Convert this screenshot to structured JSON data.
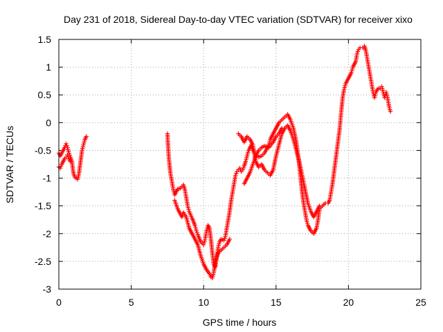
{
  "chart_data": {
    "type": "scatter",
    "title": "Day 231 of 2018, Sidereal Day-to-day VTEC variation (SDTVAR) for receiver xixo",
    "xlabel": "GPS time / hours",
    "ylabel": "SDTVAR / TECUs",
    "xlim": [
      0,
      25
    ],
    "ylim": [
      -3,
      1.5
    ],
    "xticks": [
      0,
      5,
      10,
      15,
      20,
      25
    ],
    "xtick_labels": [
      "0",
      "5",
      "10",
      "15",
      "20",
      "25"
    ],
    "yticks": [
      -3,
      -2.5,
      -2,
      -1.5,
      -1,
      -0.5,
      0,
      0.5,
      1,
      1.5
    ],
    "ytick_labels": [
      "-3",
      "-2.5",
      "-2",
      "-1.5",
      "-1",
      "-0.5",
      "0",
      "0.5",
      "1",
      "1.5"
    ],
    "grid": true,
    "marker": "plus",
    "color": "#ff0000",
    "series": [
      {
        "points": [
          [
            0.0,
            -0.55
          ],
          [
            0.1,
            -0.6
          ],
          [
            0.2,
            -0.55
          ],
          [
            0.3,
            -0.5
          ],
          [
            0.4,
            -0.45
          ],
          [
            0.5,
            -0.38
          ],
          [
            0.6,
            -0.45
          ],
          [
            0.7,
            -0.55
          ],
          [
            0.8,
            -0.62
          ],
          [
            0.9,
            -0.7
          ],
          [
            1.0,
            -0.9
          ],
          [
            1.1,
            -0.98
          ],
          [
            1.2,
            -1.0
          ],
          [
            1.3,
            -1.02
          ],
          [
            1.4,
            -0.9
          ],
          [
            1.5,
            -0.7
          ],
          [
            1.6,
            -0.5
          ],
          [
            1.7,
            -0.4
          ],
          [
            1.8,
            -0.3
          ],
          [
            1.9,
            -0.25
          ]
        ]
      },
      {
        "points": [
          [
            0.0,
            -0.8
          ],
          [
            0.1,
            -0.82
          ],
          [
            0.2,
            -0.75
          ],
          [
            0.3,
            -0.7
          ],
          [
            0.4,
            -0.65
          ],
          [
            0.5,
            -0.62
          ],
          [
            0.6,
            -0.58
          ],
          [
            0.7,
            -0.65
          ],
          [
            0.8,
            -0.7
          ]
        ]
      },
      {
        "points": [
          [
            7.5,
            -0.2
          ],
          [
            7.55,
            -0.45
          ],
          [
            7.6,
            -0.65
          ],
          [
            7.7,
            -0.9
          ],
          [
            7.8,
            -1.05
          ],
          [
            7.9,
            -1.2
          ],
          [
            8.0,
            -1.3
          ],
          [
            8.1,
            -1.25
          ],
          [
            8.2,
            -1.2
          ],
          [
            8.4,
            -1.18
          ],
          [
            8.5,
            -1.15
          ],
          [
            8.6,
            -1.12
          ],
          [
            8.7,
            -1.2
          ],
          [
            8.8,
            -1.35
          ],
          [
            8.9,
            -1.5
          ],
          [
            9.0,
            -1.6
          ],
          [
            9.2,
            -1.72
          ],
          [
            9.4,
            -1.85
          ],
          [
            9.5,
            -1.95
          ],
          [
            9.6,
            -2.02
          ],
          [
            9.8,
            -2.15
          ],
          [
            10.0,
            -2.2
          ],
          [
            10.1,
            -2.1
          ],
          [
            10.2,
            -1.95
          ],
          [
            10.3,
            -1.85
          ],
          [
            10.4,
            -1.9
          ],
          [
            10.5,
            -2.1
          ],
          [
            10.6,
            -2.35
          ],
          [
            10.7,
            -2.55
          ],
          [
            10.8,
            -2.6
          ],
          [
            10.9,
            -2.45
          ],
          [
            11.0,
            -2.25
          ],
          [
            11.1,
            -2.15
          ],
          [
            11.2,
            -2.1
          ],
          [
            11.4,
            -2.12
          ],
          [
            11.5,
            -2.05
          ],
          [
            11.6,
            -1.9
          ],
          [
            11.7,
            -1.75
          ],
          [
            11.8,
            -1.6
          ],
          [
            11.9,
            -1.4
          ],
          [
            12.0,
            -1.25
          ],
          [
            12.1,
            -1.1
          ],
          [
            12.2,
            -0.95
          ],
          [
            12.3,
            -0.88
          ],
          [
            12.4,
            -0.85
          ],
          [
            12.5,
            -0.82
          ],
          [
            12.6,
            -0.88
          ],
          [
            12.7,
            -0.85
          ],
          [
            12.8,
            -0.78
          ],
          [
            12.9,
            -0.7
          ],
          [
            13.0,
            -0.6
          ],
          [
            13.1,
            -0.5
          ],
          [
            13.2,
            -0.45
          ],
          [
            13.3,
            -0.4
          ],
          [
            13.4,
            -0.5
          ],
          [
            13.6,
            -0.58
          ],
          [
            13.8,
            -0.62
          ],
          [
            14.0,
            -0.6
          ],
          [
            14.2,
            -0.55
          ],
          [
            14.4,
            -0.45
          ],
          [
            14.5,
            -0.4
          ],
          [
            14.6,
            -0.3
          ],
          [
            14.8,
            -0.2
          ],
          [
            15.0,
            -0.1
          ],
          [
            15.2,
            0.0
          ],
          [
            15.4,
            0.05
          ],
          [
            15.6,
            0.1
          ],
          [
            15.8,
            0.15
          ],
          [
            16.0,
            0.05
          ],
          [
            16.2,
            -0.1
          ],
          [
            16.4,
            -0.35
          ],
          [
            16.5,
            -0.55
          ],
          [
            16.6,
            -0.75
          ],
          [
            16.7,
            -1.0
          ],
          [
            16.8,
            -1.25
          ],
          [
            16.9,
            -1.45
          ],
          [
            17.0,
            -1.6
          ],
          [
            17.1,
            -1.75
          ],
          [
            17.2,
            -1.85
          ],
          [
            17.4,
            -1.95
          ],
          [
            17.6,
            -2.0
          ],
          [
            17.8,
            -1.9
          ],
          [
            17.9,
            -1.75
          ],
          [
            18.0,
            -1.55
          ],
          [
            18.2,
            -1.5
          ],
          [
            18.4,
            -1.45
          ],
          [
            18.6,
            -1.45
          ],
          [
            18.7,
            -1.4
          ],
          [
            18.8,
            -1.25
          ],
          [
            18.9,
            -1.1
          ],
          [
            19.0,
            -0.9
          ],
          [
            19.1,
            -0.7
          ],
          [
            19.2,
            -0.5
          ],
          [
            19.3,
            -0.3
          ],
          [
            19.4,
            -0.1
          ],
          [
            19.5,
            0.2
          ],
          [
            19.6,
            0.45
          ],
          [
            19.7,
            0.6
          ],
          [
            19.8,
            0.7
          ],
          [
            20.0,
            0.8
          ],
          [
            20.2,
            0.9
          ],
          [
            20.3,
            1.0
          ],
          [
            20.5,
            1.1
          ],
          [
            20.6,
            1.25
          ],
          [
            20.7,
            1.32
          ],
          [
            20.8,
            1.35
          ],
          [
            21.0,
            1.35
          ],
          [
            21.1,
            1.38
          ],
          [
            21.2,
            1.3
          ],
          [
            21.3,
            1.15
          ],
          [
            21.4,
            1.0
          ],
          [
            21.5,
            0.85
          ],
          [
            21.6,
            0.7
          ],
          [
            21.7,
            0.55
          ],
          [
            21.8,
            0.45
          ],
          [
            21.9,
            0.55
          ],
          [
            22.0,
            0.6
          ],
          [
            22.1,
            0.62
          ],
          [
            22.2,
            0.62
          ],
          [
            22.3,
            0.65
          ],
          [
            22.4,
            0.55
          ],
          [
            22.5,
            0.45
          ],
          [
            22.6,
            0.55
          ],
          [
            22.7,
            0.45
          ],
          [
            22.8,
            0.3
          ],
          [
            22.9,
            0.2
          ]
        ]
      },
      {
        "points": [
          [
            8.0,
            -1.4
          ],
          [
            8.2,
            -1.55
          ],
          [
            8.4,
            -1.65
          ],
          [
            8.5,
            -1.7
          ],
          [
            8.6,
            -1.62
          ],
          [
            8.8,
            -1.7
          ],
          [
            9.0,
            -1.9
          ],
          [
            9.2,
            -2.0
          ],
          [
            9.4,
            -2.1
          ],
          [
            9.6,
            -2.2
          ],
          [
            9.8,
            -2.4
          ],
          [
            10.0,
            -2.55
          ],
          [
            10.2,
            -2.65
          ],
          [
            10.4,
            -2.72
          ],
          [
            10.5,
            -2.78
          ],
          [
            10.6,
            -2.8
          ],
          [
            10.7,
            -2.7
          ],
          [
            10.8,
            -2.5
          ],
          [
            11.0,
            -2.35
          ],
          [
            11.2,
            -2.3
          ],
          [
            11.4,
            -2.25
          ],
          [
            11.6,
            -2.2
          ],
          [
            11.8,
            -2.1
          ]
        ]
      },
      {
        "points": [
          [
            12.4,
            -0.2
          ],
          [
            12.6,
            -0.25
          ],
          [
            12.8,
            -0.35
          ],
          [
            13.0,
            -0.25
          ],
          [
            13.2,
            -0.3
          ],
          [
            13.4,
            -0.4
          ],
          [
            13.5,
            -0.55
          ],
          [
            13.6,
            -0.7
          ],
          [
            13.8,
            -0.8
          ],
          [
            14.0,
            -0.75
          ],
          [
            14.2,
            -0.85
          ],
          [
            14.4,
            -0.9
          ],
          [
            14.6,
            -0.95
          ],
          [
            14.8,
            -0.85
          ],
          [
            15.0,
            -0.6
          ],
          [
            15.2,
            -0.4
          ],
          [
            15.4,
            -0.2
          ],
          [
            15.6,
            -0.1
          ],
          [
            15.8,
            -0.05
          ],
          [
            16.0,
            -0.15
          ],
          [
            16.2,
            -0.3
          ],
          [
            16.4,
            -0.5
          ],
          [
            16.6,
            -0.7
          ],
          [
            16.8,
            -0.95
          ],
          [
            17.0,
            -1.2
          ],
          [
            17.2,
            -1.45
          ],
          [
            17.4,
            -1.6
          ],
          [
            17.6,
            -1.7
          ],
          [
            17.8,
            -1.6
          ],
          [
            18.0,
            -1.5
          ]
        ]
      },
      {
        "points": [
          [
            12.8,
            -1.1
          ],
          [
            13.0,
            -1.0
          ],
          [
            13.2,
            -0.9
          ],
          [
            13.4,
            -0.75
          ],
          [
            13.6,
            -0.6
          ],
          [
            13.8,
            -0.5
          ],
          [
            14.0,
            -0.45
          ],
          [
            14.2,
            -0.42
          ],
          [
            14.5,
            -0.45
          ],
          [
            14.8,
            -0.35
          ],
          [
            15.0,
            -0.25
          ],
          [
            15.2,
            -0.2
          ],
          [
            15.4,
            -0.1
          ]
        ]
      }
    ]
  }
}
